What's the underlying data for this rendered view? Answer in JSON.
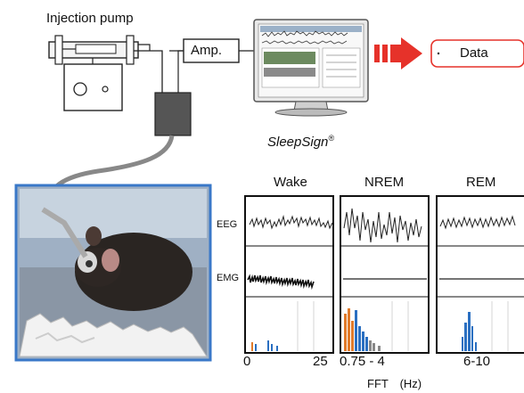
{
  "pump": {
    "label": "Injection pump"
  },
  "amp": {
    "label": "Amp."
  },
  "data_box": {
    "label": "Data"
  },
  "software": {
    "label": "SleepSign",
    "mark": "®"
  },
  "states": [
    "Wake",
    "NREM",
    "REM"
  ],
  "signals": {
    "eeg": "EEG",
    "emg": "EMG"
  },
  "fft_ticks": {
    "wake_min": "0",
    "wake_max": "25",
    "nrem_range": "0.75 - 4",
    "rem_range": "6-10"
  },
  "fft_axis": "FFT　(Hz)",
  "colors": {
    "arrow": "#e6322a",
    "data_border": "#e6322a",
    "fft_blue": "#2a6fc1",
    "fft_orange": "#e07a2a",
    "cage_border": "#3a78c8"
  }
}
